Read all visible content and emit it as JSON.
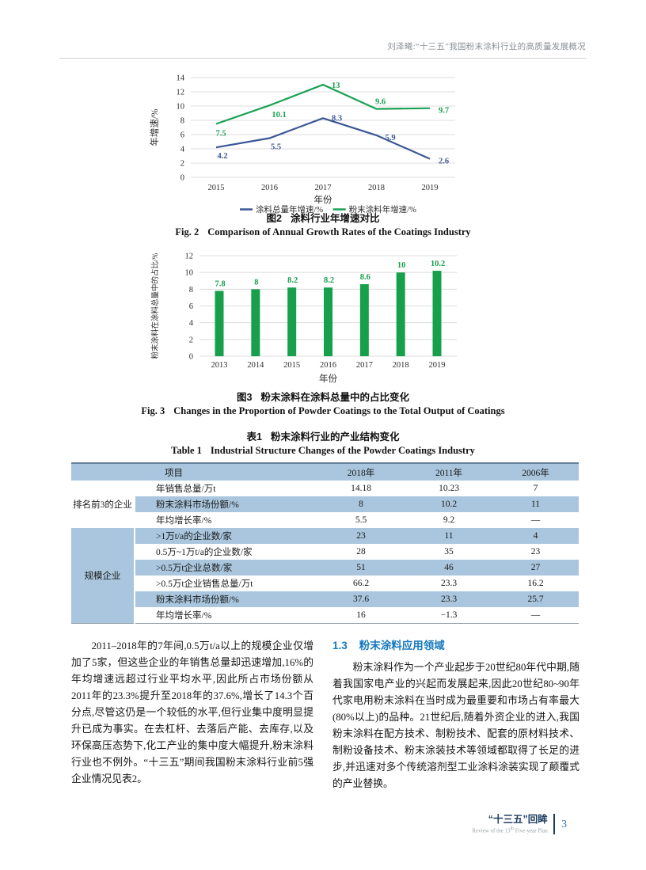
{
  "header": {
    "running_title": "刘泽曦:“十三五”我国粉末涂料行业的高质量发展概况"
  },
  "chart_data": [
    {
      "id": "fig2",
      "type": "line",
      "x": [
        "2015",
        "2016",
        "2017",
        "2018",
        "2019"
      ],
      "series": [
        {
          "name": "涂料总量年增速/%",
          "color": "#3a5795",
          "values": [
            4.2,
            5.5,
            8.3,
            5.9,
            2.6
          ]
        },
        {
          "name": "粉末涂料年增速/%",
          "color": "#1aa153",
          "values": [
            7.5,
            10.1,
            13,
            9.6,
            9.7
          ]
        }
      ],
      "xlabel": "年份",
      "ylabel": "年增速/%",
      "ylim": [
        0,
        14
      ],
      "ystep": 2,
      "grid": true,
      "legend_position": "bottom",
      "caption_zh_label": "图2",
      "caption_zh_text": "涂料行业年增速对比",
      "caption_en_label": "Fig. 2",
      "caption_en_text": "Comparison of Annual Growth Rates of the Coatings Industry"
    },
    {
      "id": "fig3",
      "type": "bar",
      "categories": [
        "2013",
        "2014",
        "2015",
        "2016",
        "2017",
        "2018",
        "2019"
      ],
      "values": [
        7.8,
        8,
        8.2,
        8.2,
        8.6,
        10,
        10.2
      ],
      "bar_color": "#17a04c",
      "xlabel": "年份",
      "ylabel": "粉末涂料在涂料总量中的占比/%",
      "ylim": [
        0,
        12
      ],
      "ystep": 2,
      "grid": true,
      "caption_zh_label": "图3",
      "caption_zh_text": "粉末涂料在涂料总量中的占比变化",
      "caption_en_label": "Fig. 3",
      "caption_en_text": "Changes in the Proportion of Powder Coatings to the Total Output of Coatings"
    }
  ],
  "table1": {
    "title_zh_label": "表1",
    "title_zh_text": "粉末涂料行业的产业结构变化",
    "title_en_label": "Table 1",
    "title_en_text": "Industrial Structure Changes of the Powder Coatings Industry",
    "columns": [
      "项目",
      "2018年",
      "2011年",
      "2006年"
    ],
    "groups": [
      {
        "name": "排名前3的企业",
        "rows": [
          {
            "item": "年销售总量/万t",
            "values": [
              "14.18",
              "10.23",
              "7"
            ]
          },
          {
            "item": "粉末涂料市场份额/%",
            "values": [
              "8",
              "10.2",
              "11"
            ]
          },
          {
            "item": "年均增长率/%",
            "values": [
              "5.5",
              "9.2",
              "—"
            ]
          }
        ]
      },
      {
        "name": "规模企业",
        "rows": [
          {
            "item": ">1万t/a的企业数/家",
            "values": [
              "23",
              "11",
              "4"
            ]
          },
          {
            "item": "0.5万~1万t/a的企业数/家",
            "values": [
              "28",
              "35",
              "23"
            ]
          },
          {
            "item": ">0.5万t企业总数/家",
            "values": [
              "51",
              "46",
              "27"
            ]
          },
          {
            "item": ">0.5万t企业销售总量/万t",
            "values": [
              "66.2",
              "23.3",
              "16.2"
            ]
          },
          {
            "item": "粉末涂料市场份额/%",
            "values": [
              "37.6",
              "23.3",
              "25.7"
            ]
          },
          {
            "item": "年均增长率/%",
            "values": [
              "16",
              "−1.3",
              "—"
            ]
          }
        ]
      }
    ]
  },
  "body": {
    "left_paragraph": "2011–2018年的7年间,0.5万t/a以上的规模企业仅增加了5家，但这些企业的年销售总量却迅速增加,16%的年均增速远超过行业平均水平,因此所占市场份额从2011年的23.3%提升至2018年的37.6%,增长了14.3个百分点,尽管这仍是一个较低的水平,但行业集中度明显提升已成为事实。在去杠杆、去落后产能、去库存,以及环保高压态势下,化工产业的集中度大幅提升,粉末涂料行业也不例外。“十三五”期间我国粉末涂料行业前5强企业情况见表2。",
    "section_heading": {
      "number": "1.3",
      "title": "粉末涂料应用领域"
    },
    "right_paragraph": "粉末涂料作为一个产业起步于20世纪80年代中期,随着我国家电产业的兴起而发展起来,因此20世纪80~90年代家电用粉末涂料在当时成为最重要和市场占有率最大(80%以上)的品种。21世纪后,随着外资企业的进入,我国粉末涂料在配方技术、制粉技术、配套的原材料技术、制粉设备技术、粉末涂装技术等领域都取得了长足的进步,并迅速对多个传统溶剂型工业涂料涂装实现了颠覆式的产业替换。"
  },
  "footer": {
    "journal_zh": "“十三五”回眸",
    "journal_en_prefix": "Review of the 13",
    "journal_en_sup": "th",
    "journal_en_suffix": " Five-year Plan",
    "page_number": "3"
  },
  "colors": {
    "total_coatings_line": "#3a5795",
    "powder_coatings_line": "#1aa153",
    "bar_green": "#17a04c",
    "table_stripe": "#a9c6de",
    "section_heading_blue": "#1779be",
    "footer_navy": "#1c3c5e",
    "page_number_blue": "#2e74b5"
  }
}
